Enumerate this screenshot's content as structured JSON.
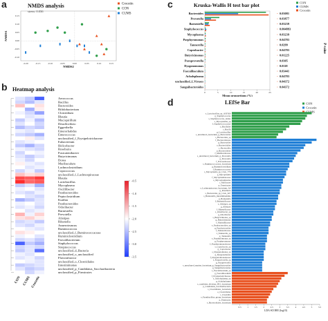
{
  "panels": {
    "a": {
      "letter": "a",
      "chart_data": {
        "type": "scatter",
        "title": "NMDS analysis",
        "subtitle": "stress: 0.036",
        "xlabel": "NMDS2",
        "ylabel": "NMDS1",
        "legend": [
          {
            "name": "Crocetin",
            "color": "#e8501e"
          },
          {
            "name": "CON",
            "color": "#2e9e4a"
          },
          {
            "name": "CUMS",
            "color": "#1f7fd6"
          }
        ],
        "legend_placement": "top-right",
        "x_ticks": [
          "-0.20",
          "-0.15",
          "-0.10",
          "-0.05",
          "0.00",
          "0.05",
          "0.10",
          "0.15"
        ],
        "y_ticks": [
          "0.15",
          "0.10",
          "0.05",
          "0.00",
          "-0.05",
          "-0.10"
        ],
        "xlim": [
          -0.22,
          0.17
        ],
        "ylim": [
          -0.12,
          0.18
        ],
        "series": [
          {
            "name": "CON",
            "points": [
              [
                -0.16,
                0.05
              ],
              [
                -0.11,
                0.06
              ],
              [
                -0.07,
                0.08
              ],
              [
                -0.04,
                0.05
              ],
              [
                0.03,
                0.1
              ],
              [
                0.09,
                -0.09
              ],
              [
                0.13,
                -0.05
              ]
            ]
          },
          {
            "name": "Crocetin",
            "points": [
              [
                0.14,
                0.15
              ],
              [
                0.09,
                0.03
              ],
              [
                0.02,
                -0.02
              ],
              [
                0.04,
                -0.05
              ],
              [
                0.11,
                -0.02
              ],
              [
                0.12,
                -0.08
              ]
            ]
          },
          {
            "name": "CUMS",
            "points": [
              [
                -0.2,
                -0.07
              ],
              [
                -0.14,
                -0.03
              ],
              [
                -0.06,
                -0.02
              ],
              [
                -0.02,
                0.0
              ],
              [
                0.01,
                -0.03
              ],
              [
                0.04,
                -0.03
              ],
              [
                0.06,
                -0.07
              ]
            ]
          }
        ]
      }
    },
    "b": {
      "letter": "b",
      "chart_data": {
        "type": "heatmap",
        "title": "Heatmap analysis",
        "columns": [
          "CON",
          "CUMS",
          "Crocetin"
        ],
        "colorbar_ticks": [
          "-0.5",
          "-1.0",
          "-1.5",
          "-2.0",
          "-2.5",
          "-3.0",
          "-3.5"
        ],
        "vmin": -3.5,
        "vmax": -0.5,
        "rows": [
          {
            "name": "Aerococcus",
            "values": [
              -2.2,
              -2.4,
              -3.2
            ]
          },
          {
            "name": "Bacillus",
            "values": [
              -2.3,
              -2.5,
              -2.2
            ]
          },
          {
            "name": "Bacteroides",
            "values": [
              -1.6,
              -2.0,
              -1.8
            ]
          },
          {
            "name": "Bifidobacterium",
            "values": [
              -2.0,
              -2.6,
              -1.9
            ]
          },
          {
            "name": "Clostridium",
            "values": [
              -2.1,
              -2.3,
              -2.7
            ]
          },
          {
            "name": "Blautia",
            "values": [
              -2.0,
              -2.2,
              -2.1
            ]
          },
          {
            "name": "Mucispirillum",
            "values": [
              -2.4,
              -2.1,
              -2.5
            ]
          },
          {
            "name": "Desulfovibrio",
            "values": [
              -2.2,
              -2.0,
              -2.3
            ]
          },
          {
            "name": "Eggerthella",
            "values": [
              -2.5,
              -2.3,
              -2.4
            ]
          },
          {
            "name": "Enterorhabdus",
            "values": [
              -2.1,
              -2.2,
              -2.0
            ]
          },
          {
            "name": "Enterococcus",
            "values": [
              -2.3,
              -2.4,
              -2.6
            ]
          },
          {
            "name": "unclassified_f_Erysipelotrichaceae",
            "values": [
              -2.0,
              -1.9,
              -2.2
            ]
          },
          {
            "name": "Eubacterium",
            "values": [
              -2.2,
              -2.1,
              -2.0
            ]
          },
          {
            "name": "Helicobacter",
            "values": [
              -2.4,
              -2.6,
              -2.3
            ]
          },
          {
            "name": "Roseburia",
            "values": [
              -2.1,
              -2.2,
              -2.3
            ]
          },
          {
            "name": "Fusicatenibacter",
            "values": [
              -2.3,
              -2.0,
              -2.1
            ]
          },
          {
            "name": "Butyricimonas",
            "values": [
              -2.2,
              -2.4,
              -2.2
            ]
          },
          {
            "name": "Dorea",
            "values": [
              -2.1,
              -2.3,
              -2.0
            ]
          },
          {
            "name": "Muribaculum",
            "values": [
              -1.9,
              -2.1,
              -2.2
            ]
          },
          {
            "name": "Lachnoclostridium",
            "values": [
              -2.0,
              -2.2,
              -2.1
            ]
          },
          {
            "name": "Coprococcus",
            "values": [
              -2.3,
              -2.1,
              -2.4
            ]
          },
          {
            "name": "unclassified_f_Lachnospiraceae",
            "values": [
              -1.6,
              -1.8,
              -1.7
            ]
          },
          {
            "name": "Blautia",
            "values": [
              -0.8,
              -0.9,
              -0.7
            ]
          },
          {
            "name": "Lactobacillus",
            "values": [
              -0.6,
              -1.0,
              -0.9
            ]
          },
          {
            "name": "Mycoplasma",
            "values": [
              -2.4,
              -2.2,
              -2.6
            ]
          },
          {
            "name": "Oscillibacter",
            "values": [
              -2.1,
              -2.0,
              -2.2
            ]
          },
          {
            "name": "Parabacteroides",
            "values": [
              -2.2,
              -2.3,
              -2.1
            ]
          },
          {
            "name": "Peptoclostridium",
            "values": [
              -2.0,
              -2.2,
              -2.3
            ]
          },
          {
            "name": "Kurthia",
            "values": [
              -2.6,
              -2.4,
              -2.2
            ]
          },
          {
            "name": "Parabacteroides",
            "values": [
              -2.1,
              -2.0,
              -2.2
            ]
          },
          {
            "name": "Odoribacter",
            "values": [
              -2.2,
              -2.1,
              -2.3
            ]
          },
          {
            "name": "Barnesiella",
            "values": [
              -2.0,
              -2.2,
              -2.1
            ]
          },
          {
            "name": "Prevotella",
            "values": [
              -1.5,
              -2.1,
              -1.7
            ]
          },
          {
            "name": "Alistipes",
            "values": [
              -1.8,
              -1.7,
              -1.9
            ]
          },
          {
            "name": "Rikenella",
            "values": [
              -2.3,
              -2.2,
              -2.4
            ]
          },
          {
            "name": "Anaerotruncus",
            "values": [
              -2.2,
              -2.3,
              -2.1
            ]
          },
          {
            "name": "Ruminococcus",
            "values": [
              -2.0,
              -2.1,
              -2.2
            ]
          },
          {
            "name": "unclassified_f_Ruminococcaceae",
            "values": [
              -1.8,
              -1.9,
              -2.0
            ]
          },
          {
            "name": "Ruminiclostridium",
            "values": [
              -2.1,
              -2.0,
              -2.2
            ]
          },
          {
            "name": "Faecalibacterium",
            "values": [
              -2.3,
              -2.2,
              -2.4
            ]
          },
          {
            "name": "Staphylococcus",
            "values": [
              -3.2,
              -2.4,
              -2.6
            ]
          },
          {
            "name": "Streptococcus",
            "values": [
              -2.3,
              -2.2,
              -2.3
            ]
          },
          {
            "name": "unclassified_d_Bacteria",
            "values": [
              -2.4,
              -2.2,
              -3.1
            ]
          },
          {
            "name": "unclassified_o_unclassified",
            "values": [
              -2.1,
              -2.2,
              -2.0
            ]
          },
          {
            "name": "Flavonifractor",
            "values": [
              -2.2,
              -2.1,
              -2.3
            ]
          },
          {
            "name": "unclassified_o_Clostridiales",
            "values": [
              -2.0,
              -2.1,
              -2.2
            ]
          },
          {
            "name": "Intestinimonas",
            "values": [
              -2.4,
              -2.3,
              -2.2
            ]
          },
          {
            "name": "unclassified_p_Candidatus_Saccharibacteria",
            "values": [
              -2.2,
              -2.4,
              -2.3
            ]
          },
          {
            "name": "unclassified_p_Firmicutes",
            "values": [
              -2.0,
              -2.3,
              -2.1
            ]
          }
        ]
      }
    },
    "c": {
      "letter": "c",
      "chart_data": {
        "type": "bar",
        "title": "Kruska-Wallis H test bar plot",
        "xlabel": "Mean proportions (%)",
        "ylabel": "P-value",
        "legend": [
          {
            "name": "CON",
            "color": "#2e9e4a"
          },
          {
            "name": "CUMS",
            "color": "#1f7fd6"
          },
          {
            "name": "Crocetin",
            "color": "#e8501e"
          }
        ],
        "legend_placement": "top-right",
        "x_ticks": [
          "0",
          "5",
          "10",
          "15",
          "20",
          "25"
        ],
        "xlim": [
          0,
          25
        ],
        "categories": [
          "Bacteroides",
          "Prevotella",
          "Barnesiella",
          "Staphylococcus",
          "Mycoplasma",
          "Porphyromonas",
          "Tannerella",
          "Coprobacter",
          "Butyricimonas",
          "Paraprevotella",
          "Dysgonomonas",
          "Faecalibaculum",
          "Acholeplasma",
          "unclassified_f_Viruses",
          "Sanguibacteroides"
        ],
        "p_values": [
          "0.03081",
          "0.03877",
          "0.03239",
          "0.004893",
          "0.03239",
          "0.04783",
          "0.0299",
          "0.04783",
          "0.01225",
          "0.0305",
          "0.0118",
          "0.03441",
          "0.04783",
          "0.04372",
          "0.04372"
        ],
        "series": [
          {
            "name": "CON",
            "values": [
              23.5,
              5.6,
              1.6,
              0.3,
              0.3,
              0.3,
              0.2,
              0.2,
              0.2,
              0.2,
              0.1,
              0.1,
              0.1,
              0.1,
              0.1
            ]
          },
          {
            "name": "CUMS",
            "values": [
              12.8,
              2.4,
              1.4,
              0.6,
              0.2,
              0.1,
              0.1,
              0.1,
              0.1,
              0.1,
              0.1,
              0.1,
              0.1,
              0.1,
              0.1
            ]
          },
          {
            "name": "Crocetin",
            "values": [
              24.5,
              4.3,
              1.9,
              0.5,
              0.4,
              0.3,
              0.2,
              0.2,
              0.2,
              0.1,
              0.1,
              0.1,
              0.1,
              0.1,
              0.1
            ]
          }
        ]
      }
    },
    "d": {
      "letter": "d",
      "chart_data": {
        "type": "bar",
        "title": "LEfSe Bar",
        "xlabel": "LDA SCORE (log10)",
        "legend": [
          {
            "name": "CON",
            "color": "#2e9e4a"
          },
          {
            "name": "Crocetin",
            "color": "#1f7fd6"
          },
          {
            "name": "CUMS",
            "color": "#e8501e"
          }
        ],
        "legend_placement": "top-right",
        "x_ticks": [
          "0.5",
          "1",
          "1.5",
          "2",
          "2.5",
          "3",
          "3.5",
          "4",
          "4.5",
          "5",
          "5.5"
        ],
        "xlim": [
          0,
          5.5
        ],
        "groups": [
          {
            "name": "CON",
            "scores": [
              5.0,
              4.7,
              4.6,
              4.4,
              4.3,
              3.6,
              3.4,
              3.2,
              2.9,
              2.8
            ]
          },
          {
            "name": "Crocetin",
            "scores": [
              5.3,
              5.0,
              4.6,
              4.5,
              4.3,
              4.1,
              4.0,
              3.9,
              3.8,
              3.6,
              3.6,
              3.5,
              3.4,
              3.4,
              3.3,
              3.2,
              3.2,
              3.1,
              3.1,
              3.0,
              3.0,
              2.9,
              2.9,
              2.8,
              2.8,
              2.7,
              2.7,
              2.6,
              2.6,
              2.5,
              2.5,
              2.4,
              2.4,
              2.3,
              2.3,
              2.3,
              2.2,
              2.2,
              2.2,
              2.1,
              2.1,
              2.1,
              2.0,
              2.0,
              2.0,
              2.0,
              1.9,
              1.9,
              1.9,
              1.9
            ]
          },
          {
            "name": "CUMS",
            "scores": [
              3.5,
              3.3,
              3.1,
              3.0,
              2.9,
              2.8,
              2.6,
              2.5,
              2.4,
              2.3,
              2.2,
              2.2
            ]
          }
        ],
        "labels": [
          "s_Lactobacillus_sp_ASF360",
          "g_Staphylococcus",
          "s_Staphylococcus_lentus",
          "s_Mycoplasma_sp",
          "f_Staphylococcaceae",
          "o_Bacillales",
          "c_Bacilli",
          "g_Lactobacillus",
          "s_uncultured_bacterium_g_Bacteroides",
          "s_Bacteroides_sp",
          "f_Bacteroidaceae",
          "g_Bacteroides",
          "o_Bacteroidales",
          "c_Bacteroidia",
          "p_Bacteroidetes",
          "f_Muribaculaceae",
          "s_uncultured_bacterium_g_Prevotella",
          "g_Prevotella",
          "f_Prevotellaceae",
          "s_Ruminococcaceae_bacterium",
          "g_Ruminiclostridium",
          "f_Ruminococcaceae",
          "s_Mycoplasma_sp_CAG_776",
          "g_Mycoplasma",
          "f_Mycoplasmataceae",
          "o_Mycoplasmatales",
          "c_Mollicutes",
          "p_Tenericutes",
          "s_Lachnospiraceae_bacterium_A4",
          "g_Roseburia",
          "s_Bacteroides_sp_CAG_927",
          "s_Barnesiella_intestinihominis",
          "g_Barnesiella",
          "f_Barnesiellaceae",
          "s_Alistipes_sp",
          "g_Alistipes",
          "f_Rikenellaceae",
          "s_Odoribacter_sp",
          "g_Odoribacter",
          "s_Butyricimonas_sp",
          "g_Butyricimonas",
          "f_Marinifilaceae",
          "s_Parabacteroides_sp",
          "g_Parabacteroides",
          "f_Tannerellaceae",
          "s_Tannerella_sp",
          "g_Tannerella",
          "s_Porphyromonas_sp",
          "g_Porphyromonas",
          "f_Porphyromonadaceae",
          "s_Coprobacter_sp",
          "g_Coprobacter",
          "s_Dysgonomonas_sp",
          "g_Dysgonomonas",
          "f_Dysgonomonadaceae",
          "s_Paraprevotella_sp",
          "g_Paraprevotella",
          "s_uncultured_marine_bacterium_g_Sanguibacteroides",
          "g_Sanguibacteroides",
          "s_Faecalibaculum_sp",
          "g_Faecalibaculum",
          "f_Erysipelotrichaceae",
          "s_Acholeplasma_sp",
          "g_Acholeplasma",
          "s_candidate_division_SR1_bacterium",
          "p_Candidatus_Saccharibacteria",
          "s_Clostridiales_bacterium",
          "o_Clostridiales",
          "c_Clostridia",
          "s_Paenibacillus_group_bacterium",
          "p_Firmicutes",
          "s_Bacteroidales_bacterium"
        ]
      }
    }
  }
}
